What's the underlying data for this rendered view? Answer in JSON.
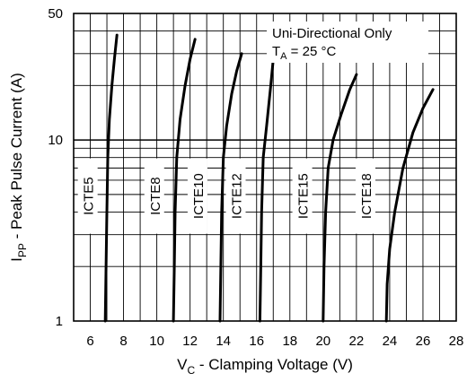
{
  "chart_data": {
    "type": "line",
    "title": "",
    "xlabel": {
      "main": "V",
      "sub": "C",
      "rest": " - Clamping Voltage (V)"
    },
    "ylabel": {
      "main": "I",
      "sub": "PP",
      "rest": " - Peak Pulse Current (A)"
    },
    "x_scale": "linear",
    "y_scale": "log",
    "xlim": [
      5,
      28
    ],
    "ylim": [
      1,
      50
    ],
    "x_ticks": [
      6,
      8,
      10,
      12,
      14,
      16,
      18,
      20,
      22,
      24,
      26,
      28
    ],
    "y_ticks": [
      1,
      10,
      50
    ],
    "grid": true,
    "annotations": [
      {
        "line": 1,
        "text": "Uni-Directional Only"
      },
      {
        "line": 2,
        "main": "T",
        "sub": "A",
        "rest": " = 25 °C"
      }
    ],
    "series": [
      {
        "name": "ICTE5",
        "x": [
          6.9,
          6.95,
          7.0,
          7.05,
          7.15,
          7.3,
          7.45,
          7.6
        ],
        "y": [
          1.0,
          2.0,
          4.0,
          8.0,
          13.0,
          20.0,
          28.0,
          38.0
        ]
      },
      {
        "name": "ICTE8",
        "x": [
          11.0,
          11.05,
          11.1,
          11.2,
          11.4,
          11.7,
          12.0,
          12.3
        ],
        "y": [
          1.0,
          2.0,
          4.0,
          8.0,
          13.0,
          20.0,
          28.0,
          36.0
        ]
      },
      {
        "name": "ICTE10",
        "x": [
          13.8,
          13.85,
          13.9,
          14.0,
          14.2,
          14.5,
          14.8,
          15.1
        ],
        "y": [
          1.0,
          2.0,
          4.0,
          8.0,
          12.0,
          18.0,
          24.0,
          30.0
        ]
      },
      {
        "name": "ICTE12",
        "x": [
          16.2,
          16.25,
          16.3,
          16.4,
          16.6,
          16.85,
          17.0
        ],
        "y": [
          1.0,
          2.0,
          4.0,
          8.0,
          12.0,
          20.0,
          28.0
        ]
      },
      {
        "name": "ICTE15",
        "x": [
          20.0,
          20.05,
          20.15,
          20.3,
          20.6,
          21.1,
          21.6,
          22.0
        ],
        "y": [
          1.0,
          2.0,
          4.0,
          7.0,
          10.0,
          14.0,
          19.0,
          23.0
        ]
      },
      {
        "name": "ICTE18",
        "x": [
          23.8,
          23.85,
          24.0,
          24.3,
          24.8,
          25.4,
          26.0,
          26.6
        ],
        "y": [
          1.0,
          1.6,
          2.5,
          4.0,
          7.0,
          11.0,
          15.0,
          19.0
        ]
      }
    ]
  }
}
